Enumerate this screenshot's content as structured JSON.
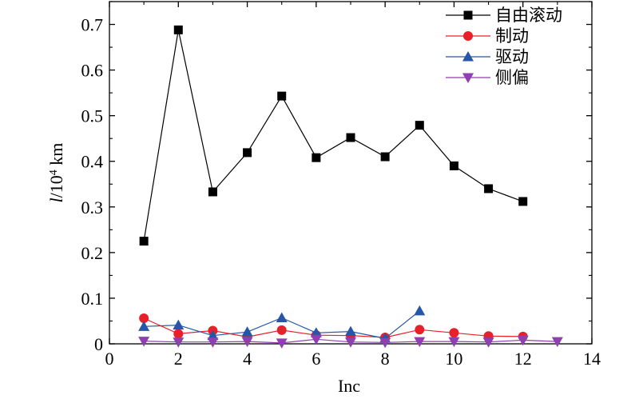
{
  "chart_data": {
    "type": "line",
    "xlabel": "Inc",
    "ylabel": {
      "italic": "l",
      "base": "/10",
      "sup": "4",
      "unit": " km"
    },
    "xlim": [
      0,
      14
    ],
    "ylim": [
      0,
      0.75
    ],
    "xticks": [
      0,
      2,
      4,
      6,
      8,
      10,
      12,
      14
    ],
    "yticks": [
      0,
      0.1,
      0.2,
      0.3,
      0.4,
      0.5,
      0.6,
      0.7
    ],
    "ytick_labels": [
      "0",
      "0.1",
      "0.2",
      "0.3",
      "0.4",
      "0.5",
      "0.6",
      "0.7"
    ],
    "grid": false,
    "legend_position": "top-right",
    "series": [
      {
        "name": "自由滚动",
        "color": "#000000",
        "marker": "square",
        "x": [
          1,
          2,
          3,
          4,
          5,
          6,
          7,
          8,
          9,
          10,
          11,
          12
        ],
        "y": [
          0.225,
          0.688,
          0.333,
          0.419,
          0.543,
          0.408,
          0.452,
          0.41,
          0.479,
          0.39,
          0.34,
          0.312
        ]
      },
      {
        "name": "制动",
        "color": "#e8202a",
        "marker": "circle",
        "x": [
          1,
          2,
          3,
          4,
          5,
          6,
          7,
          8,
          9,
          10,
          11,
          12
        ],
        "y": [
          0.056,
          0.022,
          0.029,
          0.015,
          0.03,
          0.019,
          0.018,
          0.014,
          0.031,
          0.024,
          0.017,
          0.016
        ]
      },
      {
        "name": "驱动",
        "color": "#2457a8",
        "marker": "triangle-up",
        "x": [
          1,
          2,
          3,
          4,
          5,
          6,
          7,
          8,
          9
        ],
        "y": [
          0.038,
          0.041,
          0.018,
          0.026,
          0.057,
          0.024,
          0.027,
          0.012,
          0.072
        ]
      },
      {
        "name": "侧偏",
        "color": "#8e3fb0",
        "marker": "triangle-down",
        "x": [
          1,
          2,
          3,
          4,
          5,
          6,
          7,
          8,
          9,
          10,
          11,
          12,
          13
        ],
        "y": [
          0.006,
          0.004,
          0.004,
          0.005,
          0.002,
          0.01,
          0.004,
          0.003,
          0.005,
          0.005,
          0.004,
          0.008,
          0.005
        ]
      }
    ]
  }
}
